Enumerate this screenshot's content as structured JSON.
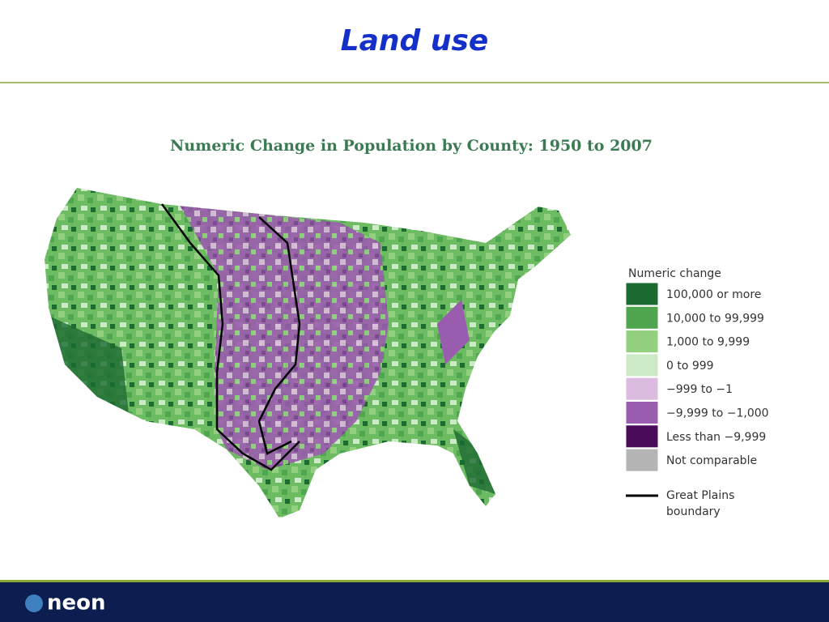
{
  "slide_title": "Land use",
  "map": {
    "title": "Numeric Change in Population by County: 1950 to 2007",
    "legend": {
      "title": "Numeric change",
      "items": [
        {
          "label": "100,000 or more",
          "color": "#1b6a32"
        },
        {
          "label": "10,000 to 99,999",
          "color": "#4fa64f"
        },
        {
          "label": "1,000 to 9,999",
          "color": "#92cf7e"
        },
        {
          "label": "0 to 999",
          "color": "#cbeac5"
        },
        {
          "label": "−999 to −1",
          "color": "#dcbbe0"
        },
        {
          "label": "−9,999 to −1,000",
          "color": "#9a5cae"
        },
        {
          "label": "Less than −9,999",
          "color": "#4a0b5b"
        },
        {
          "label": "Not comparable",
          "color": "#b4b4b4"
        }
      ],
      "boundary_label": [
        "Great Plains",
        "boundary"
      ]
    }
  },
  "footer": {
    "logo": "neon"
  }
}
